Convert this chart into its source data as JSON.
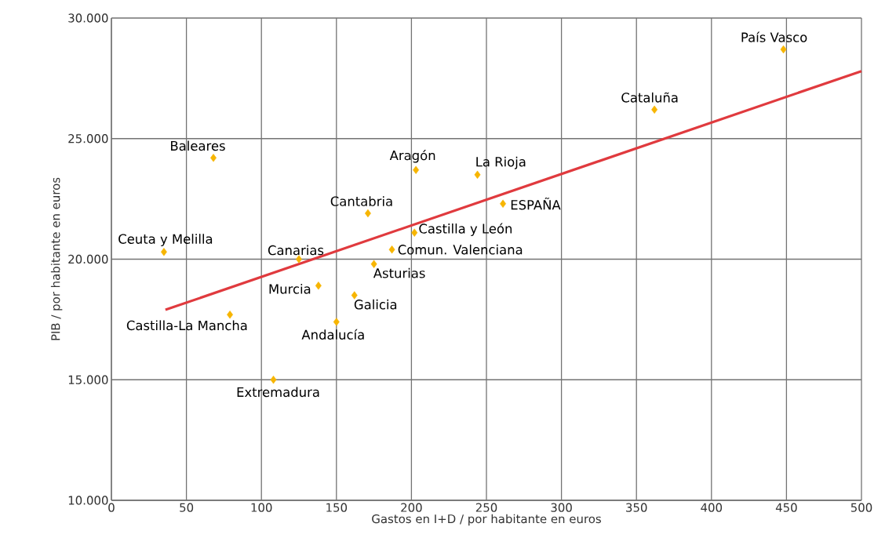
{
  "chart_data": {
    "type": "scatter",
    "xlabel": "Gastos en I+D / por habitante en euros",
    "ylabel": "PIB / por habitante en euros",
    "xlim": [
      0,
      500
    ],
    "xticks": [
      0,
      50,
      100,
      150,
      200,
      250,
      300,
      350,
      400,
      450,
      500
    ],
    "ylim": [
      10000,
      30000
    ],
    "yticks": [
      {
        "value": 10000,
        "label": "10.000"
      },
      {
        "value": 15000,
        "label": "15.000"
      },
      {
        "value": 20000,
        "label": "20.000"
      },
      {
        "value": 25000,
        "label": "25.000"
      },
      {
        "value": 30000,
        "label": "30.000"
      }
    ],
    "grid": true,
    "series": [
      {
        "color": "#f7b500",
        "marker": "diamond",
        "x": [
          448,
          362,
          68,
          203,
          244,
          261,
          171,
          202,
          35,
          125,
          187,
          175,
          138,
          162,
          79,
          150,
          108
        ],
        "values": [
          28700,
          26200,
          24200,
          23700,
          23500,
          22300,
          21900,
          21100,
          20300,
          20000,
          20400,
          19800,
          18900,
          18500,
          17700,
          17400,
          15000
        ]
      },
      {
        "type": "line",
        "color": "#e03a3e",
        "marker": "none",
        "line_style": "solid",
        "x": [
          36,
          500
        ],
        "values": [
          17900,
          27800
        ]
      }
    ],
    "annotations": [
      {
        "text": "País Vasco",
        "x": 448,
        "y": 28700
      },
      {
        "text": "Cataluña",
        "x": 362,
        "y": 26200
      },
      {
        "text": "Baleares",
        "x": 68,
        "y": 24200
      },
      {
        "text": "Aragón",
        "x": 203,
        "y": 23700
      },
      {
        "text": "La Rioja",
        "x": 244,
        "y": 23500
      },
      {
        "text": "ESPAÑA",
        "x": 261,
        "y": 22300
      },
      {
        "text": "Cantabria",
        "x": 171,
        "y": 21900
      },
      {
        "text": "Castilla y León",
        "x": 202,
        "y": 21100
      },
      {
        "text": "Ceuta y Melilla",
        "x": 35,
        "y": 20300
      },
      {
        "text": "Canarias",
        "x": 125,
        "y": 20000
      },
      {
        "text": "Comun. Valenciana",
        "x": 187,
        "y": 20400
      },
      {
        "text": "Asturias",
        "x": 175,
        "y": 19800
      },
      {
        "text": "Murcia",
        "x": 138,
        "y": 18900
      },
      {
        "text": "Galicia",
        "x": 162,
        "y": 18500
      },
      {
        "text": "Castilla-La Mancha",
        "x": 79,
        "y": 17700
      },
      {
        "text": "Andalucía",
        "x": 150,
        "y": 17400
      },
      {
        "text": "Extremadura",
        "x": 108,
        "y": 15000
      }
    ]
  }
}
